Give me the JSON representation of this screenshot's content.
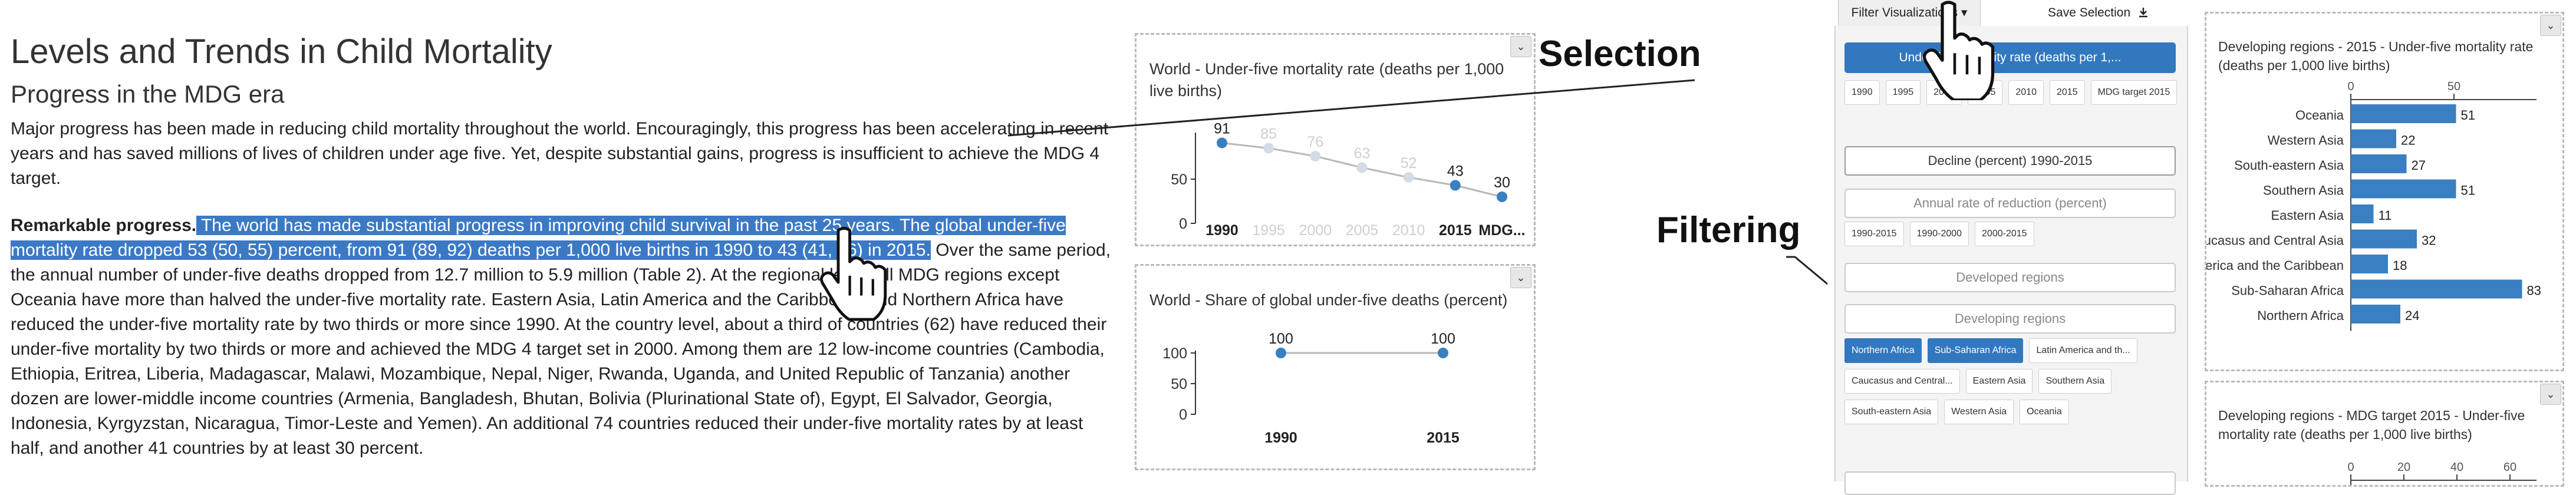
{
  "article": {
    "title": "Levels and Trends in Child Mortality",
    "subtitle": "Progress in the MDG era",
    "para1": "Major progress has been made in reducing child mortality throughout the world. Encouragingly, this progress has been accelerating in recent years and has saved millions of lives of children under age five. Yet, despite substantial gains, progress is insufficient to achieve the MDG 4 target.",
    "para2_lead": "Remarkable progress.",
    "para2_highlight": " The world has made substantial progress in improving child survival in the past 25 years. The global under-five mortality rate dropped 53 (50, 55) percent, from 91 (89, 92) deaths per 1,000 live births in 1990 to 43 (41, 46) in 2015.",
    "para2_rest": " Over the same period, the annual number of under-five deaths dropped from 12.7 million to 5.9 million (Table 2). At the regional level, all MDG regions except Oceania have more than halved the under-five mortality rate. Eastern Asia, Latin America and the Caribbean, and Northern Africa have reduced the under-five mortality rate by two thirds or more since 1990. At the country level, about a third of countries (62) have reduced their under-five mortality by two thirds or more and achieved the MDG 4 target set in 2000. Among them are 12 low-income countries (Cambodia, Ethiopia, Eritrea, Liberia, Madagascar, Malawi, Mozambique, Nepal, Niger, Rwanda, Uganda, and United Republic of Tanzania) another dozen are lower-middle income countries (Armenia, Bangladesh, Bhutan, Bolivia (Plurinational State of), Egypt, El Salvador, Georgia, Indonesia, Kyrgyzstan, Nicaragua, Timor-Leste and Yemen). An additional 74 countries reduced their under-five mortality rates by at least half, and another 41 countries by at least 30 percent."
  },
  "annotations": {
    "selection": "Selection",
    "filtering": "Filtering"
  },
  "toggle_glyph": "⌄",
  "chart_data": [
    {
      "type": "line",
      "title": "World - Under-five mortality rate (deaths per 1,000 live births)",
      "categories": [
        "1990",
        "1995",
        "2000",
        "2005",
        "2010",
        "2015",
        "MDG..."
      ],
      "values": [
        91,
        85,
        76,
        63,
        52,
        43,
        30
      ],
      "active": [
        true,
        false,
        false,
        false,
        false,
        true,
        true
      ],
      "yticks": [
        0,
        50
      ],
      "ylim": [
        0,
        100
      ]
    },
    {
      "type": "line",
      "title": "World - Share of global under-five deaths (percent)",
      "categories": [
        "1990",
        "2015"
      ],
      "values": [
        100,
        100
      ],
      "yticks": [
        0,
        50,
        100
      ],
      "ylim": [
        0,
        100
      ]
    },
    {
      "type": "bar",
      "orientation": "horizontal",
      "title": "Developing regions - 2015 - Under-five mortality rate (deaths per 1,000 live births)",
      "xticks": [
        0,
        50
      ],
      "xlim": [
        0,
        90
      ],
      "categories": [
        "Oceania",
        "Western Asia",
        "South-eastern Asia",
        "Southern Asia",
        "Eastern Asia",
        "Caucasus and Central Asia",
        "Latin America and the Caribbean",
        "Sub-Saharan Africa",
        "Northern Africa"
      ],
      "values": [
        51,
        22,
        27,
        51,
        11,
        32,
        18,
        83,
        24
      ],
      "color": "#3a7fc1"
    },
    {
      "type": "bar",
      "orientation": "horizontal",
      "title": "Developing regions - MDG target 2015 - Under-five mortality rate (deaths per 1,000 live births)",
      "xticks": [
        0,
        20,
        40,
        60
      ],
      "xlim": [
        0,
        70
      ],
      "categories": [],
      "values": []
    }
  ],
  "filter": {
    "button_label": "Filter Visualizations",
    "button_caret": "▾",
    "save_label": "Save Selection",
    "save_icon": "download-icon",
    "selected_indicator": "Under-five mortality rate (deaths per 1,...",
    "year_chips": [
      "1990",
      "1995",
      "2000",
      "2005",
      "2010",
      "2015",
      "MDG target 2015"
    ],
    "decline_label": "Decline (percent) 1990-2015",
    "annual_label": "Annual rate of reduction (percent)",
    "period_chips": [
      "1990-2015",
      "1990-2000",
      "2000-2015"
    ],
    "developed_label": "Developed regions",
    "developing_label": "Developing regions",
    "region_chips": [
      {
        "label": "Northern Africa",
        "on": true
      },
      {
        "label": "Sub-Saharan Africa",
        "on": true
      },
      {
        "label": "Latin America and th...",
        "on": false
      },
      {
        "label": "Caucasus and Central...",
        "on": false
      },
      {
        "label": "Eastern Asia",
        "on": false
      },
      {
        "label": "Southern Asia",
        "on": false
      },
      {
        "label": "South-eastern Asia",
        "on": false
      },
      {
        "label": "Western Asia",
        "on": false
      },
      {
        "label": "Oceania",
        "on": false
      }
    ]
  },
  "colors": {
    "accent": "#3278be",
    "point": "#3a7fc1",
    "muted": "#c8c8c8"
  }
}
